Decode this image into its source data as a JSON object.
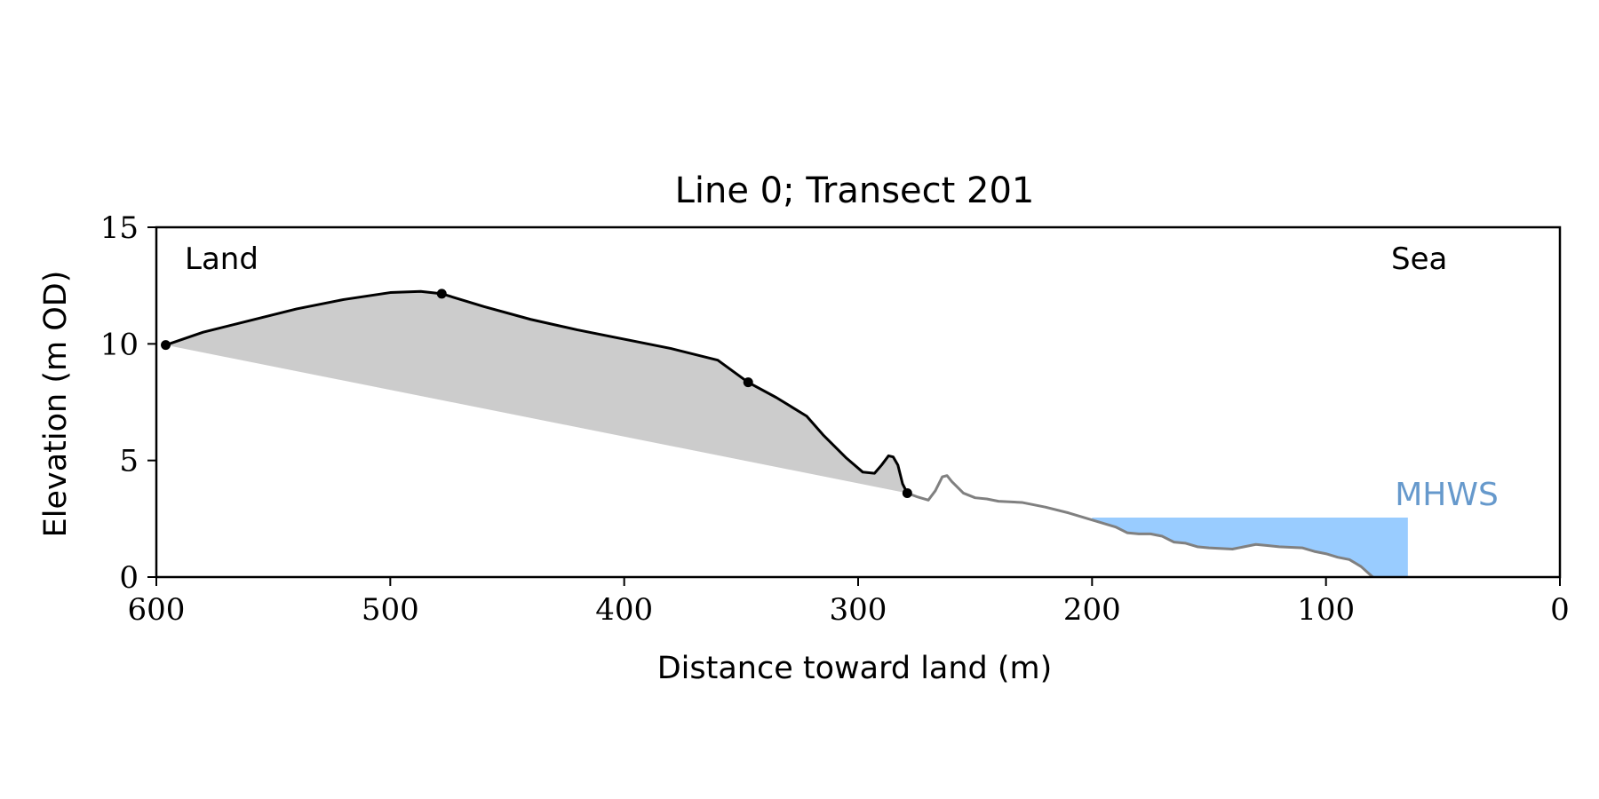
{
  "chart_data": {
    "type": "area",
    "title": "Line 0; Transect 201",
    "xlabel": "Distance toward land (m)",
    "ylabel": "Elevation (m OD)",
    "xlim": [
      600,
      0
    ],
    "ylim": [
      0,
      15
    ],
    "x_ticks": [
      600,
      500,
      400,
      300,
      200,
      100,
      0
    ],
    "y_ticks": [
      0,
      5,
      10,
      15
    ],
    "grid": false,
    "annotations": {
      "land": "Land",
      "sea": "Sea",
      "mhws": "MHWS"
    },
    "colors": {
      "profile": "#000000",
      "profile_seaward": "#808080",
      "fill": "#cccccc",
      "water": "#99ccff",
      "mhws_text": "#6699cc"
    },
    "profile_primary": {
      "x": [
        596,
        580,
        560,
        540,
        520,
        500,
        487,
        478,
        460,
        440,
        420,
        400,
        380,
        360,
        347,
        335,
        322,
        315,
        305,
        298,
        293,
        290,
        287,
        285,
        283,
        281,
        279
      ],
      "y": [
        9.95,
        10.5,
        11.0,
        11.5,
        11.9,
        12.2,
        12.25,
        12.15,
        11.6,
        11.05,
        10.6,
        10.2,
        9.8,
        9.3,
        8.35,
        7.7,
        6.9,
        6.1,
        5.1,
        4.5,
        4.45,
        4.8,
        5.2,
        5.15,
        4.8,
        4.0,
        3.6
      ]
    },
    "profile_seaward": {
      "x": [
        279,
        275,
        270,
        267,
        264,
        262,
        260,
        255,
        250,
        245,
        240,
        230,
        220,
        210,
        200,
        190,
        185,
        180,
        175,
        170,
        165,
        160,
        155,
        150,
        140,
        130,
        125,
        120,
        110,
        105,
        100,
        95,
        90,
        85,
        80
      ],
      "y": [
        3.6,
        3.45,
        3.3,
        3.7,
        4.3,
        4.35,
        4.1,
        3.6,
        3.4,
        3.35,
        3.25,
        3.2,
        3.0,
        2.75,
        2.45,
        2.15,
        1.9,
        1.85,
        1.85,
        1.75,
        1.5,
        1.45,
        1.3,
        1.25,
        1.2,
        1.4,
        1.35,
        1.3,
        1.25,
        1.1,
        1.0,
        0.85,
        0.75,
        0.45,
        0.0
      ]
    },
    "markers": {
      "x": [
        596,
        478,
        347,
        279
      ],
      "y": [
        9.95,
        12.15,
        8.35,
        3.6
      ]
    },
    "fill_between": {
      "start": [
        596,
        9.95
      ],
      "end": [
        279,
        3.6
      ]
    },
    "mhws": {
      "level": 2.55,
      "x_start": 200,
      "x_end": 65
    }
  }
}
